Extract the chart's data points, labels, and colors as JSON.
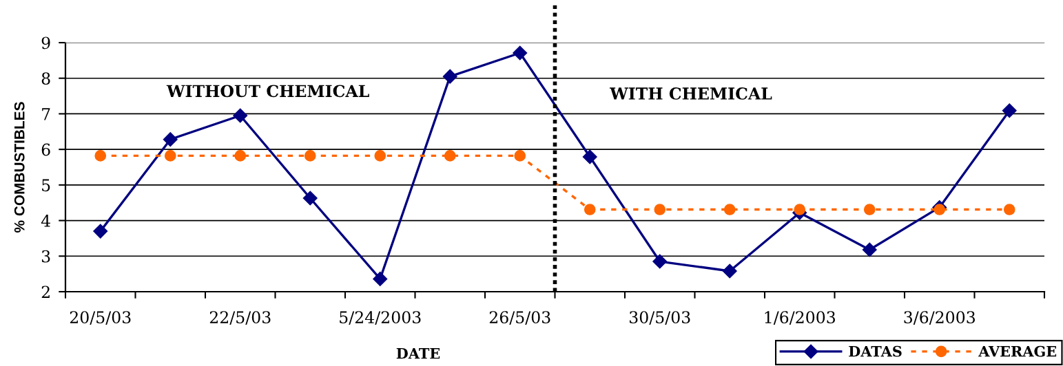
{
  "chart_data": {
    "type": "line",
    "xlabel": "DATE",
    "ylabel": "% COMBUSTIBLES",
    "categories": [
      "20/5/03",
      null,
      "22/5/03",
      null,
      "5/24/2003",
      null,
      "26/5/03",
      null,
      "30/5/03",
      null,
      "1/6/2003",
      null,
      "3/6/2003",
      null
    ],
    "series": [
      {
        "name": "DATAS",
        "color": "#000080",
        "marker": "diamond",
        "line_style": "solid",
        "values": [
          3.7,
          6.28,
          6.95,
          4.63,
          2.36,
          8.05,
          8.71,
          5.79,
          2.85,
          2.58,
          4.22,
          3.18,
          4.37,
          7.09
        ]
      },
      {
        "name": "AVERAGE",
        "color": "#ff6600",
        "marker": "circle",
        "line_style": "dashed",
        "values": [
          5.82,
          5.82,
          5.82,
          5.82,
          5.82,
          5.82,
          5.82,
          4.31,
          4.31,
          4.31,
          4.31,
          4.31,
          4.31,
          4.31
        ]
      }
    ],
    "ylim": [
      2,
      9
    ],
    "yticks": [
      2,
      3,
      4,
      5,
      6,
      7,
      8,
      9
    ],
    "grid": "y",
    "legend": "bottom right",
    "annotations": [
      "WITHOUT CHEMICAL",
      "WITH CHEMICAL"
    ]
  }
}
